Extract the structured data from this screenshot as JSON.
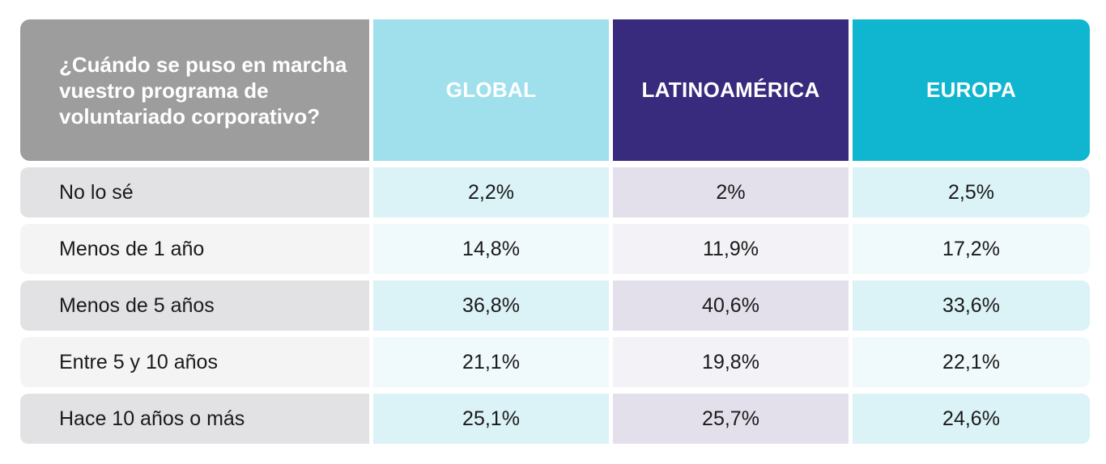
{
  "chart_data": {
    "type": "table",
    "title": "¿Cuándo se puso en marcha vuestro programa de voluntariado corporativo?",
    "columns": [
      "GLOBAL",
      "LATINOAMÉRICA",
      "EUROPA"
    ],
    "rows": [
      {
        "label": "No lo sé",
        "values": [
          "2,2%",
          "2%",
          "2,5%"
        ]
      },
      {
        "label": "Menos de 1 año",
        "values": [
          "14,8%",
          "11,9%",
          "17,2%"
        ]
      },
      {
        "label": "Menos de 5 años",
        "values": [
          "36,8%",
          "40,6%",
          "33,6%"
        ]
      },
      {
        "label": "Entre 5 y 10 años",
        "values": [
          "21,1%",
          "19,8%",
          "22,1%"
        ]
      },
      {
        "label": "Hace 10 años o más",
        "values": [
          "25,1%",
          "25,7%",
          "24,6%"
        ]
      }
    ]
  },
  "colors": {
    "question_header": "#9d9d9d",
    "global": "#9fe0ec",
    "latinoamerica": "#382b7d",
    "europa": "#10b5cf"
  }
}
